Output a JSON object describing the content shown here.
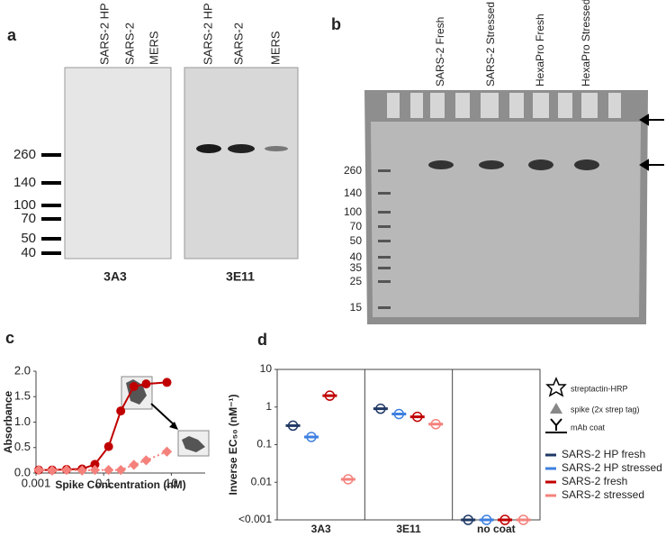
{
  "panel_labels": [
    "a",
    "b",
    "c",
    "d"
  ],
  "blot_a": {
    "markers": [
      "260",
      "140",
      "100",
      "70",
      "50",
      "40"
    ],
    "blots": [
      {
        "antibody": "3A3",
        "lanes": [
          "SARS-2 HP",
          "SARS-2",
          "MERS"
        ]
      },
      {
        "antibody": "3E11",
        "lanes": [
          "SARS-2 HP",
          "SARS-2",
          "MERS"
        ]
      }
    ]
  },
  "gel_b": {
    "lanes": [
      "SARS-2 Fresh",
      "SARS-2 Stressed",
      "HexaPro Fresh",
      "HexaPro Stressed"
    ],
    "markers": [
      "260",
      "140",
      "100",
      "70",
      "50",
      "40",
      "35",
      "25",
      "15"
    ]
  },
  "chart_data": [
    {
      "type": "line",
      "xlabel": "Spike Concentration (nM)",
      "ylabel": "Absorbance",
      "log_x": true,
      "xlim": [
        0.001,
        100
      ],
      "xticks": [
        0.001,
        0.1,
        10
      ],
      "ylim": [
        0,
        2
      ],
      "yticks": [
        {
          "value": 0,
          "label": "0.0"
        },
        {
          "value": 0.5,
          "label": "0.5"
        },
        {
          "value": 1,
          "label": "1.0"
        },
        {
          "value": 1.5,
          "label": "1.5"
        },
        {
          "value": 2,
          "label": "2.0"
        }
      ],
      "x": [
        0.0012,
        0.003,
        0.008,
        0.023,
        0.055,
        0.14,
        0.32,
        0.78,
        1.8,
        7.4
      ],
      "series": [
        {
          "color": "#c00000",
          "values": [
            0.06,
            0.06,
            0.07,
            0.08,
            0.17,
            0.52,
            1.22,
            1.7,
            1.75,
            1.78
          ]
        },
        {
          "color": "#f4817c",
          "dashed": true,
          "values": [
            0.06,
            0.05,
            0.06,
            0.05,
            0.06,
            0.06,
            0.06,
            0.16,
            0.25,
            0.42
          ]
        }
      ]
    },
    {
      "type": "dot",
      "ylabel": "Inverse EC₅₀ (nM⁻¹)",
      "categories": [
        "3A3",
        "3E11",
        "no coat"
      ],
      "log_y": true,
      "ylim": [
        0.001,
        10
      ],
      "yticks": [
        {
          "value": 0.001,
          "label": "<0.001"
        },
        0.01,
        0.1,
        1,
        10
      ],
      "series": [
        {
          "name": "SARS-2 HP fresh",
          "color": "#1f3864",
          "values": [
            0.32,
            0.9,
            0.001
          ]
        },
        {
          "name": "SARS-2 HP stressed",
          "color": "#3d7fe0",
          "values": [
            0.16,
            0.65,
            0.001
          ]
        },
        {
          "name": "SARS-2 fresh",
          "color": "#c00000",
          "values": [
            2.0,
            0.55,
            0.001
          ]
        },
        {
          "name": "SARS-2 stressed",
          "color": "#f4817c",
          "values": [
            0.012,
            0.35,
            0.001
          ]
        }
      ],
      "annotations": [
        "streptactin-HRP",
        "spike (2x strep tag)",
        "mAb coat"
      ]
    }
  ]
}
